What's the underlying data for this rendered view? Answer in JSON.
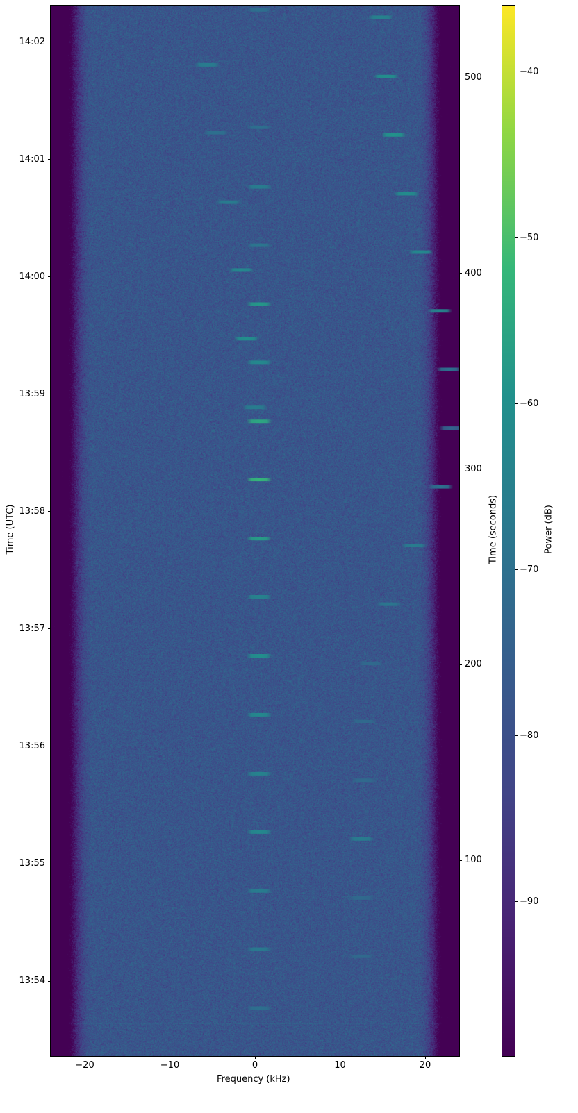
{
  "chart_data": {
    "type": "heatmap",
    "title": "",
    "xlabel": "Frequency (kHz)",
    "ylabel_left": "Time (UTC)",
    "ylabel_right": "Time (seconds)",
    "colorbar_label": "Power (dB)",
    "colormap": "viridis",
    "xlim": [
      -24,
      24
    ],
    "ylim_seconds": [
      0,
      537
    ],
    "clim": [
      -99.3,
      -36
    ],
    "x_ticks": [
      -20,
      -10,
      0,
      10,
      20
    ],
    "x_tick_labels": [
      "−20",
      "−10",
      "0",
      "10",
      "20"
    ],
    "right_ticks": [
      100,
      200,
      300,
      400,
      500
    ],
    "right_tick_labels": [
      "100",
      "200",
      "300",
      "400",
      "500"
    ],
    "left_ticks": [
      {
        "label": "13:54",
        "seconds": 38.3
      },
      {
        "label": "13:55",
        "seconds": 98.3
      },
      {
        "label": "13:56",
        "seconds": 158.3
      },
      {
        "label": "13:57",
        "seconds": 218.3
      },
      {
        "label": "13:58",
        "seconds": 278.3
      },
      {
        "label": "13:59",
        "seconds": 338.3
      },
      {
        "label": "14:00",
        "seconds": 398.3
      },
      {
        "label": "14:01",
        "seconds": 458.3
      },
      {
        "label": "14:02",
        "seconds": 518.3
      }
    ],
    "colorbar_ticks": [
      -40,
      -50,
      -60,
      -70,
      -80,
      -90
    ],
    "colorbar_tick_labels": [
      "−40",
      "−50",
      "−60",
      "−70",
      "−80",
      "−90"
    ],
    "noise_floor_db": -78,
    "passband_khz": [
      -21,
      21
    ],
    "signals": [
      {
        "freq_khz": 0.5,
        "time_s": 534.8,
        "power_db": -70
      },
      {
        "freq_khz": 0.5,
        "time_s": 474.8,
        "power_db": -70
      },
      {
        "freq_khz": 0.5,
        "time_s": 444.3,
        "power_db": -66
      },
      {
        "freq_khz": 0.5,
        "time_s": 414.5,
        "power_db": -68
      },
      {
        "freq_khz": 0.5,
        "time_s": 384.4,
        "power_db": -58
      },
      {
        "freq_khz": 0.5,
        "time_s": 354.6,
        "power_db": -62
      },
      {
        "freq_khz": 0.5,
        "time_s": 324.5,
        "power_db": -55
      },
      {
        "freq_khz": 0.5,
        "time_s": 294.7,
        "power_db": -52
      },
      {
        "freq_khz": 0.5,
        "time_s": 264.5,
        "power_db": -57
      },
      {
        "freq_khz": 0.5,
        "time_s": 234.8,
        "power_db": -64
      },
      {
        "freq_khz": 0.5,
        "time_s": 204.6,
        "power_db": -60
      },
      {
        "freq_khz": 0.5,
        "time_s": 174.5,
        "power_db": -62
      },
      {
        "freq_khz": 0.5,
        "time_s": 144.3,
        "power_db": -64
      },
      {
        "freq_khz": 0.5,
        "time_s": 114.5,
        "power_db": -62
      },
      {
        "freq_khz": 0.5,
        "time_s": 84.4,
        "power_db": -66
      },
      {
        "freq_khz": 0.5,
        "time_s": 54.6,
        "power_db": -67
      },
      {
        "freq_khz": 0.5,
        "time_s": 24.5,
        "power_db": -70
      },
      {
        "freq_khz": 0.0,
        "time_s": 331.6,
        "power_db": -66
      },
      {
        "freq_khz": -1.0,
        "time_s": 366.7,
        "power_db": -60
      },
      {
        "freq_khz": -1.6,
        "time_s": 401.8,
        "power_db": -62
      },
      {
        "freq_khz": -3.1,
        "time_s": 436.5,
        "power_db": -66
      },
      {
        "freq_khz": -4.6,
        "time_s": 472.0,
        "power_db": -70
      },
      {
        "freq_khz": -5.6,
        "time_s": 506.7,
        "power_db": -66
      },
      {
        "freq_khz": 14.8,
        "time_s": 531.0,
        "power_db": -64
      },
      {
        "freq_khz": 15.4,
        "time_s": 500.7,
        "power_db": -60
      },
      {
        "freq_khz": 16.3,
        "time_s": 470.9,
        "power_db": -59
      },
      {
        "freq_khz": 17.8,
        "time_s": 440.8,
        "power_db": -61
      },
      {
        "freq_khz": 19.5,
        "time_s": 411.0,
        "power_db": -62
      },
      {
        "freq_khz": 21.7,
        "time_s": 380.9,
        "power_db": -64
      },
      {
        "freq_khz": 22.8,
        "time_s": 351.0,
        "power_db": -70
      },
      {
        "freq_khz": 23.1,
        "time_s": 321.0,
        "power_db": -74
      },
      {
        "freq_khz": 21.8,
        "time_s": 291.0,
        "power_db": -70
      },
      {
        "freq_khz": 18.7,
        "time_s": 261.0,
        "power_db": -66
      },
      {
        "freq_khz": 15.7,
        "time_s": 231.0,
        "power_db": -68
      },
      {
        "freq_khz": 13.6,
        "time_s": 200.7,
        "power_db": -72
      },
      {
        "freq_khz": 12.8,
        "time_s": 171.0,
        "power_db": -72
      },
      {
        "freq_khz": 12.8,
        "time_s": 141.0,
        "power_db": -72
      },
      {
        "freq_khz": 12.5,
        "time_s": 111.0,
        "power_db": -66
      },
      {
        "freq_khz": 12.5,
        "time_s": 80.8,
        "power_db": -72
      },
      {
        "freq_khz": 12.5,
        "time_s": 51.0,
        "power_db": -72
      }
    ]
  }
}
